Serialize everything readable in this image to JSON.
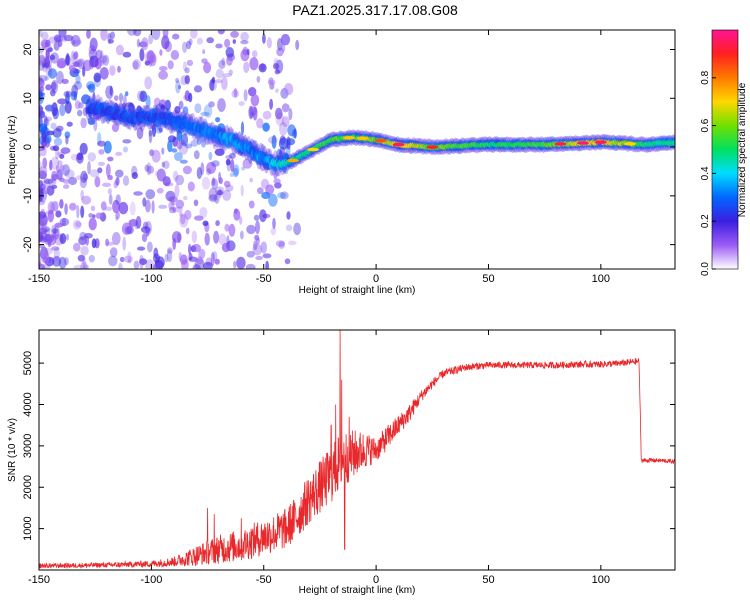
{
  "title": "PAZ1.2025.317.17.08.G08",
  "chart_data": [
    {
      "type": "heatmap",
      "name": "spectrogram",
      "xlabel": "Height of straight line (km)",
      "ylabel": "Frequency (Hz)",
      "xlim": [
        -150,
        133
      ],
      "ylim": [
        -25,
        24
      ],
      "xticks": [
        "-150",
        "-100",
        "-50",
        "0",
        "50",
        "100"
      ],
      "yticks": [
        "20",
        "10",
        "0",
        "-10",
        "-20"
      ],
      "ridge": {
        "description": "dominant frequency track",
        "x": [
          -125,
          -110,
          -95,
          -80,
          -65,
          -55,
          -45,
          -38,
          -30,
          -20,
          -10,
          0,
          10,
          25,
          50,
          75,
          100,
          120,
          133
        ],
        "y": [
          8,
          6,
          6,
          4,
          1.5,
          -1,
          -3.5,
          -3,
          -1,
          1.5,
          2,
          1.5,
          0.5,
          0,
          0.5,
          0.5,
          1,
          0.5,
          1
        ],
        "amplitude": [
          0.25,
          0.25,
          0.25,
          0.3,
          0.35,
          0.3,
          0.4,
          0.45,
          0.5,
          0.55,
          0.55,
          0.6,
          0.7,
          0.6,
          0.5,
          0.55,
          0.75,
          0.5,
          0.45
        ]
      },
      "colorbar": {
        "label": "Normalized spectral amplitude",
        "range": [
          0,
          1
        ],
        "ticks": [
          "0.0",
          "0.2",
          "0.4",
          "0.6",
          "0.8"
        ],
        "colors": [
          "#ffffff",
          "#9b5cf6",
          "#3b1fe0",
          "#0066ff",
          "#00ddff",
          "#00e060",
          "#70e000",
          "#ffd700",
          "#ff7a00",
          "#ff2020",
          "#ff1493"
        ]
      }
    },
    {
      "type": "line",
      "name": "snr",
      "xlabel": "Height of straight line (km)",
      "ylabel": "SNR (10 * v/v)",
      "xlim": [
        -150,
        133
      ],
      "ylim": [
        0,
        5800
      ],
      "xticks": [
        "-150",
        "-100",
        "-50",
        "0",
        "50",
        "100"
      ],
      "yticks": [
        "1000",
        "2000",
        "3000",
        "4000",
        "5000"
      ],
      "color": "#e8282b",
      "envelope": {
        "x": [
          -150,
          -120,
          -100,
          -90,
          -80,
          -70,
          -60,
          -50,
          -40,
          -35,
          -30,
          -25,
          -20,
          -15,
          -10,
          -5,
          0,
          5,
          10,
          15,
          20,
          25,
          30,
          40,
          50,
          60,
          70,
          80,
          90,
          100,
          110,
          117,
          118,
          125,
          133
        ],
        "y": [
          100,
          120,
          150,
          200,
          350,
          500,
          600,
          800,
          1000,
          1300,
          1700,
          2000,
          2300,
          2700,
          2800,
          2900,
          2900,
          3200,
          3500,
          3800,
          4200,
          4500,
          4750,
          4900,
          4950,
          4950,
          4950,
          4950,
          4970,
          4970,
          5000,
          5050,
          2650,
          2650,
          2620
        ],
        "noise": [
          60,
          60,
          80,
          120,
          250,
          350,
          400,
          450,
          500,
          550,
          600,
          650,
          700,
          700,
          600,
          450,
          300,
          300,
          250,
          220,
          150,
          120,
          100,
          90,
          80,
          80,
          80,
          80,
          80,
          80,
          80,
          80,
          60,
          50,
          50
        ]
      },
      "spikes": [
        {
          "x": -16,
          "y": 5800
        },
        {
          "x": -15.3,
          "y": 4600
        },
        {
          "x": -18,
          "y": 4000
        },
        {
          "x": -14,
          "y": 500
        },
        {
          "x": -20,
          "y": 3500
        },
        {
          "x": -12,
          "y": 3700
        },
        {
          "x": -75,
          "y": 1500
        },
        {
          "x": -72,
          "y": 1350
        },
        {
          "x": -60,
          "y": 1250
        }
      ]
    }
  ]
}
